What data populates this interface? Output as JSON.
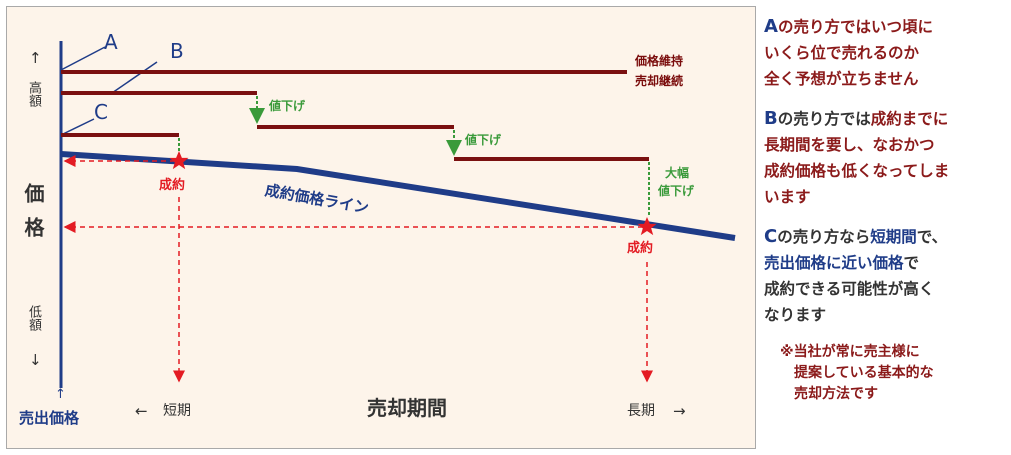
{
  "diagram": {
    "line_labels": {
      "a": "A",
      "b": "B",
      "c": "C"
    },
    "axis": {
      "up_arrow": "↑",
      "high": "高額",
      "title": "価格",
      "low": "低額",
      "down_arrow": "↓",
      "origin_arrow": "↑",
      "origin_label": "売出価格",
      "left_arrow": "←",
      "short": "短期",
      "period": "売却期間",
      "long": "長期",
      "right_arrow": "→"
    },
    "annotations": {
      "keep_price": "価格維持",
      "continue_sale": "売却継続",
      "price_cut_1": "値下げ",
      "price_cut_2": "値下げ",
      "big": "大幅",
      "price_cut_3": "値下げ",
      "deal_1": "成約",
      "deal_2": "成約",
      "deal_line": "成約価格ライン"
    },
    "colors": {
      "price_line": "#7a1010",
      "deal_line": "#1f3c88",
      "red": "#e31b23",
      "green": "#3a9a3a"
    }
  },
  "sidebar": {
    "p1": [
      "A",
      "の売り方では",
      "いつ頃に",
      "いくら位で売れるのか",
      "全く予想が立ちません"
    ],
    "p2": [
      "B",
      "の売り方では",
      "成約までに",
      "長期間を要し、なおかつ",
      "成約価格も低くなってしま",
      "います"
    ],
    "p3": [
      "C",
      "の売り方なら",
      "短期間",
      "で、",
      "売出価格に近い価格",
      "で",
      "成約できる可能性が高く",
      "なります"
    ],
    "note": [
      "※当社が常に売主様に",
      "提案している基本的な",
      "売却方法です"
    ]
  }
}
